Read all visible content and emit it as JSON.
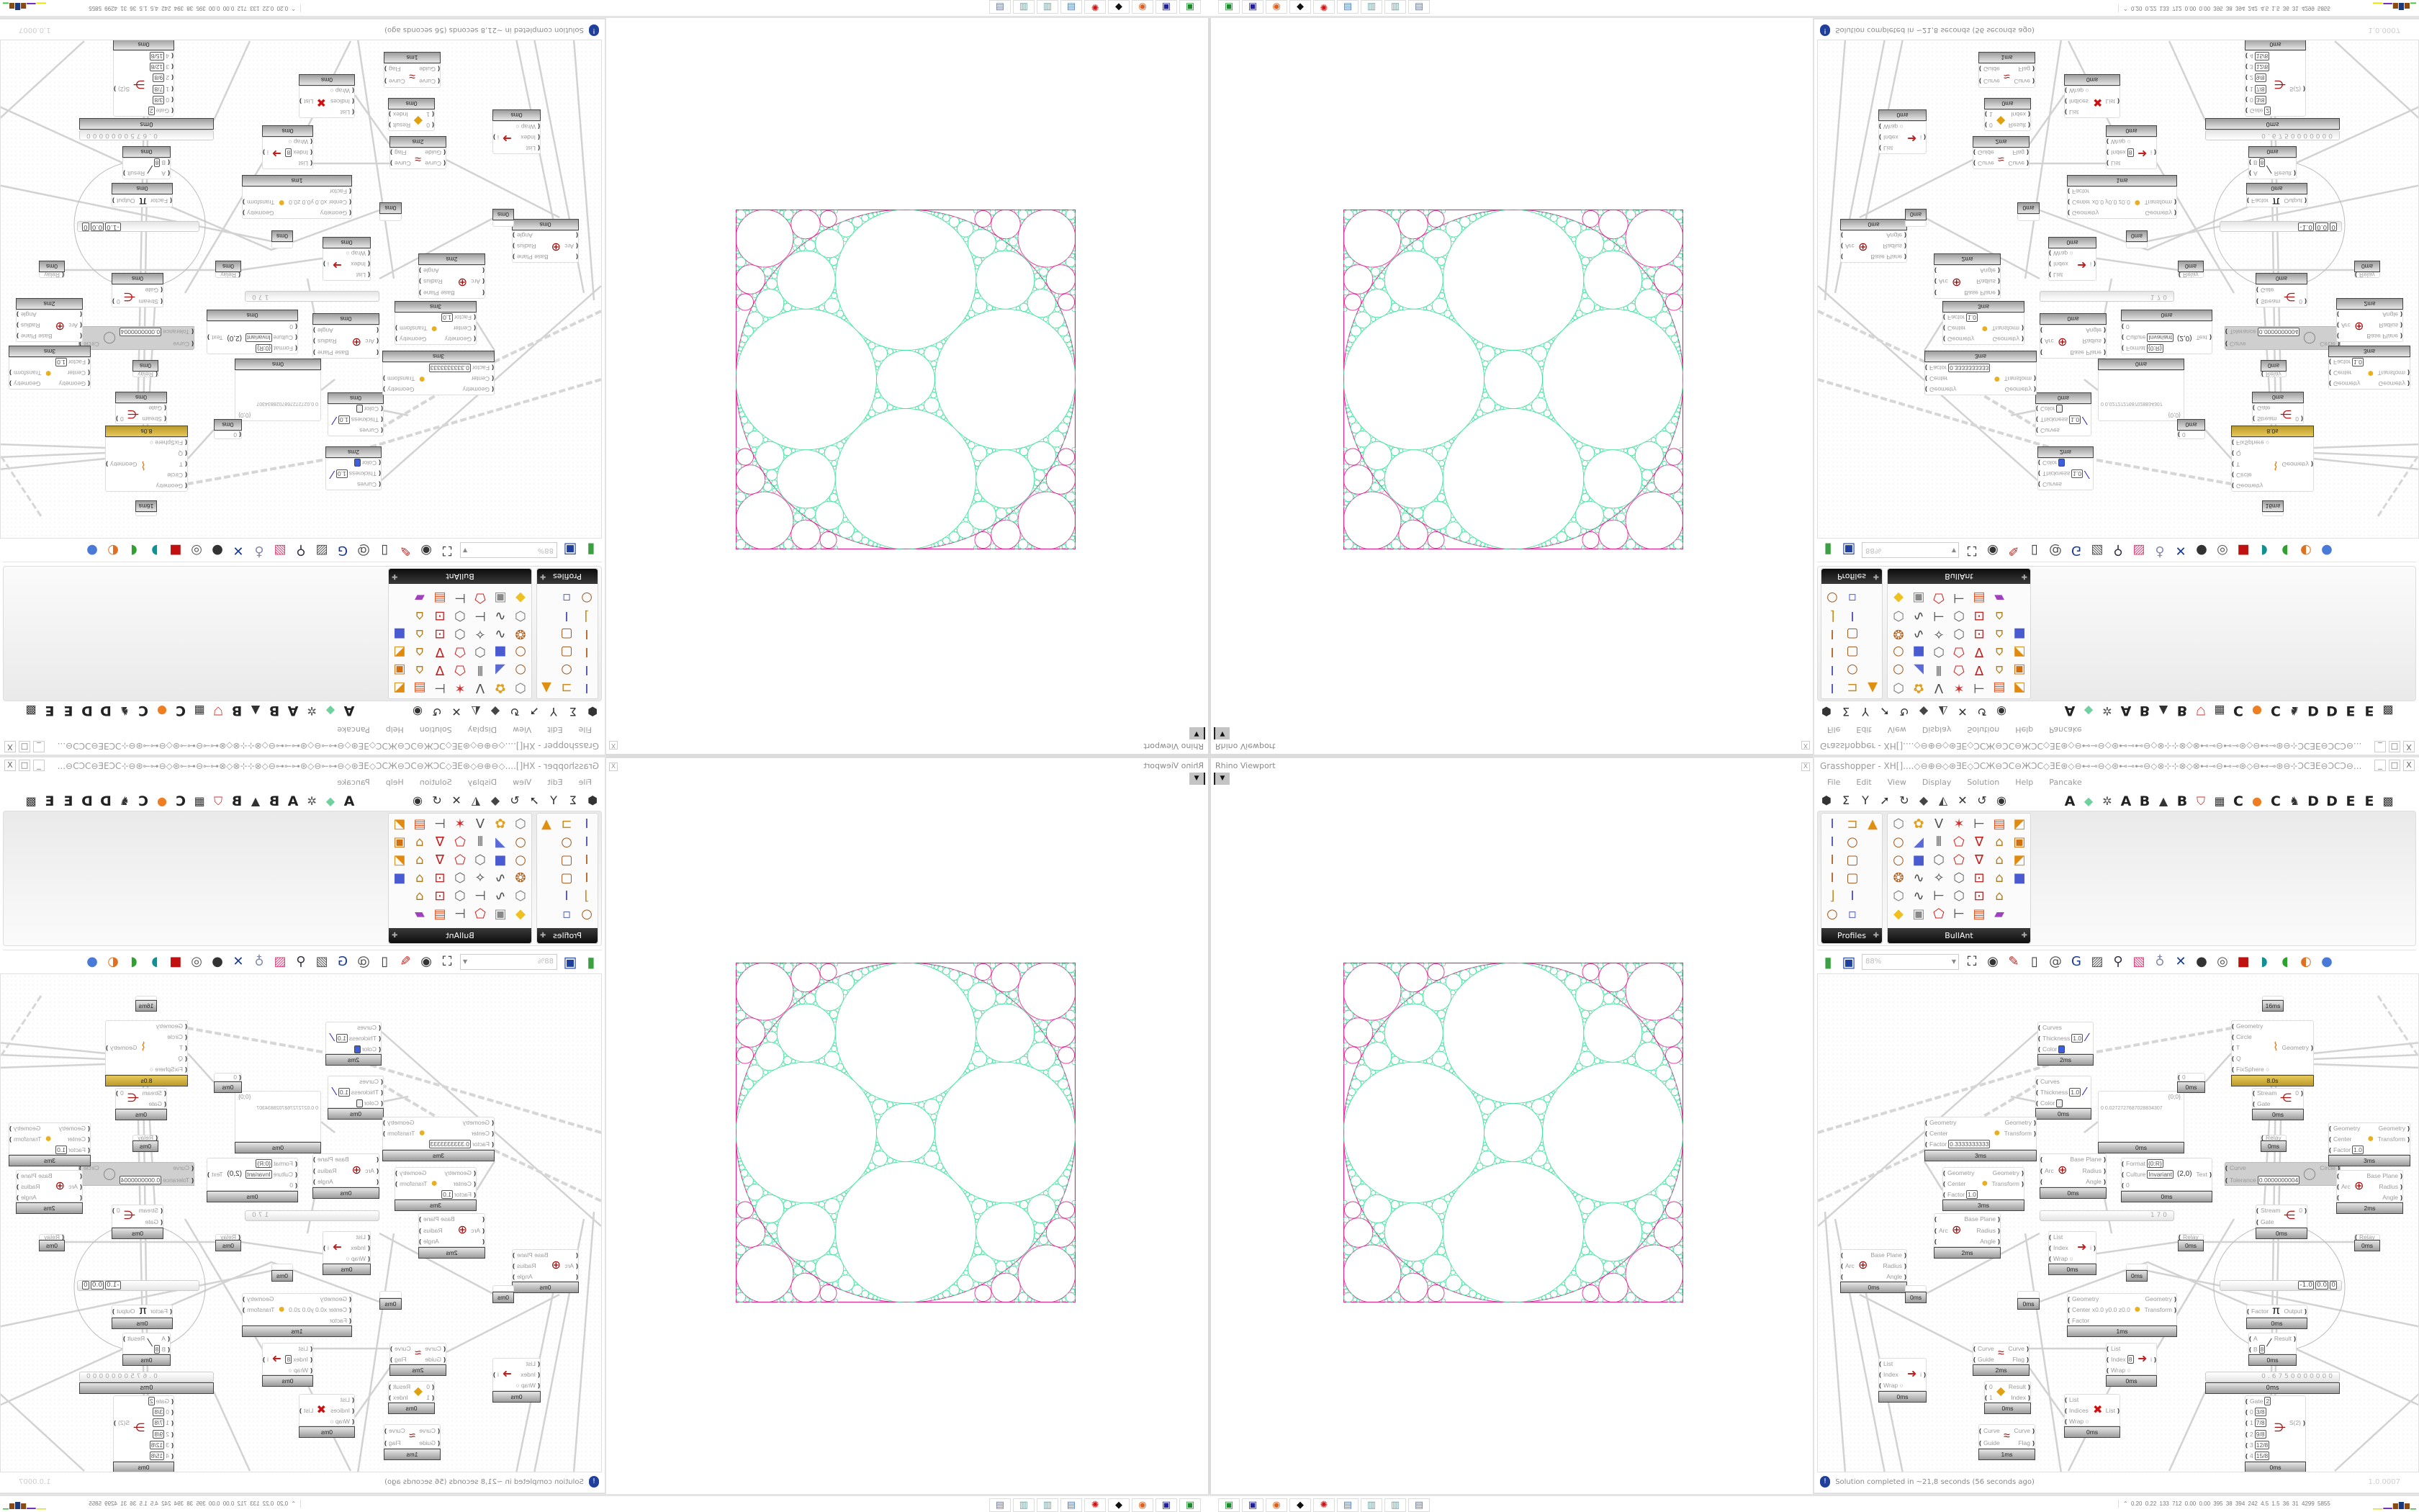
{
  "rhino": {
    "title": "Rhino Viewport",
    "dropdown_icon": "caret-down-icon",
    "close_label": "X"
  },
  "packing_colors": {
    "inner_circles": "#3fe39c",
    "boundary": "#e0208f"
  },
  "grasshopper": {
    "title": "Grasshopper - XH[]....◇⊖⊕⊖◇⊛ƎE◇ƆCЖ⊖ƆC⊖ЖƆC◇ƎE⊛◇⊖⊷⊸⊖◇⊛⊷⊸⊷⊖◇⊗⊹⊹⊗◇⊗⊷⊸⊖⊷⊸⊛◇⊖⊷⊸⊛⊖⊹ƆCƎE⊖ƆCƆ⊖...",
    "window_controls": [
      "_",
      "□",
      "X"
    ],
    "menu": [
      "File",
      "Edit",
      "View",
      "Display",
      "Solution",
      "Help",
      "Pancake"
    ],
    "tab_icons": [
      "hexagon-icon",
      "sigma-icon",
      "vector-icon",
      "arrow-icon",
      "rotate-icon",
      "surface-icon",
      "mesh-icon",
      "intersect-icon",
      "transform-icon",
      "eye-icon"
    ],
    "tabs": [
      {
        "label": "A"
      },
      {
        "icon": "leaf-icon"
      },
      {
        "icon": "gear-icon"
      },
      {
        "label": "A"
      },
      {
        "label": "B"
      },
      {
        "icon": "terrain-icon"
      },
      {
        "label": "B"
      },
      {
        "icon": "shield-icon"
      },
      {
        "icon": "grid-icon"
      },
      {
        "label": "C"
      },
      {
        "icon": "orange-dot-icon"
      },
      {
        "label": "C"
      },
      {
        "icon": "bird-icon"
      },
      {
        "label": "D"
      },
      {
        "label": "D"
      },
      {
        "label": "E"
      },
      {
        "label": "E"
      },
      {
        "icon": "dots-grid-icon"
      }
    ],
    "palette": [
      {
        "title": "Profiles",
        "cols": 3,
        "icons": [
          "i-section-icon",
          "c-channel-icon",
          "roof-fire-icon",
          "i-section-icon",
          "ring-icon",
          "",
          "i-beam-icon",
          "hollow-rect-icon",
          "",
          "i-beam-icon",
          "hollow-rect-icon",
          "",
          "angle-icon",
          "i-section-icon",
          "",
          "ring-icon",
          "small-squares-icon",
          ""
        ]
      },
      {
        "title": "BullAnt",
        "cols": 7,
        "icons": [
          "box-icon",
          "flower-icon",
          "v-truss-icon",
          "star-icon",
          "bracket-icon",
          "warp-icon",
          "graph-icon",
          "ring-icon",
          "plane-icon",
          "bars-icon",
          "quad-red-icon",
          "v-red-icon",
          "lock-icon",
          "frame-icon",
          "ring-icon",
          "cube-blue-icon",
          "hex-outline-icon",
          "quad-red-icon",
          "v-red-icon",
          "lock-icon",
          "graph-icon",
          "gear-ball-icon",
          "curve-icon",
          "star-outline-icon",
          "hex-outline-icon",
          "frame-red-icon",
          "lock-icon",
          "cube-blue-icon",
          "box-icon",
          "curve-icon",
          "bracket-icon",
          "hex-outline-icon",
          "frame-red-icon",
          "lock-icon",
          "",
          "gem-yellow-icon",
          "tablet-icon",
          "quad-red-icon",
          "bracket-icon",
          "warp-icon",
          "rainbow-icon",
          ""
        ]
      }
    ],
    "toolbar": {
      "zoom_value": "88%",
      "icons_left": [
        "new-document-icon",
        "save-icon"
      ],
      "icons_right": [
        "zoom-extents-icon",
        "eye-icon",
        "sketch-pen-icon",
        "battery-icon",
        "at-sign-icon",
        "gha-icon",
        "image-doc-icon",
        "search-s-icon",
        "package-icon",
        "bulb-icon",
        "wires-cross-icon",
        "dark-sphere-icon",
        "white-ring-icon",
        "red-box-icon",
        "teal-twist-icon",
        "green-cylinder-icon",
        "orange-sphere-icon",
        "blue-sphere-icon"
      ]
    },
    "nodes": [
      {
        "inputs": [
          {
            "l": "Curves"
          },
          {
            "l": "Thickness",
            "v": "1.0"
          },
          {
            "l": "Color",
            "sw": "#3a5fe0"
          }
        ],
        "outputs": [],
        "time": "2ms",
        "icon": "curve-preview-icon"
      },
      {
        "inputs": [
          {
            "l": "Curves"
          },
          {
            "l": "Thickness",
            "v": "1.0"
          },
          {
            "l": "Color",
            "sw": "#f0f0f0"
          }
        ],
        "outputs": [],
        "time": "0ms",
        "icon": "curve-preview-icon"
      },
      {
        "type": "panel",
        "header": "{0;0}",
        "lines": [
          "0  0.0272727687028834307"
        ],
        "time": "0ms"
      },
      {
        "inputs": [
          {
            "l": "Geometry"
          },
          {
            "l": "Circle"
          },
          {
            "l": "T"
          },
          {
            "l": "Q"
          },
          {
            "l": "FixSphere ○"
          }
        ],
        "outputs": [
          "",
          "",
          "Geometry",
          "",
          ""
        ],
        "time": "8.0s",
        "gold": true,
        "icon": "kangaroo-icon"
      },
      {
        "inputs": [
          {
            "l": "0"
          }
        ],
        "outputs": [],
        "time": "0ms"
      },
      {
        "inputs": [
          {
            "l": "Stream"
          },
          {
            "l": "Gate"
          }
        ],
        "outputs": [
          "0"
        ],
        "time": "0ms",
        "icon": "stream-gate-icon"
      },
      {
        "inputs": [
          {
            "l": "Relay"
          }
        ],
        "outputs": [],
        "time": "0ms"
      },
      {
        "inputs": [
          {
            "l": "Geometry"
          },
          {
            "l": "Center"
          },
          {
            "l": "Factor",
            "v": "0.3333333333"
          }
        ],
        "outputs": [
          "Geometry",
          "Transform"
        ],
        "time": "3ms",
        "icon": "scale-icon"
      },
      {
        "inputs": [
          {
            "l": "Geometry"
          },
          {
            "l": "Center"
          },
          {
            "l": "Factor",
            "v": "1.0"
          }
        ],
        "outputs": [
          "Geometry",
          "Transform"
        ],
        "time": "3ms",
        "icon": "scale-icon"
      },
      {
        "inputs": [
          {
            "l": ""
          },
          {
            "l": "Arc"
          },
          {
            "l": ""
          }
        ],
        "outputs": [
          "Base Plane",
          "Radius",
          "Angle"
        ],
        "time": "0ms",
        "icon": "deconstruct-arc-icon"
      },
      {
        "inputs": [
          {
            "l": "Format",
            "v": "{0:R}"
          },
          {
            "l": "Culture",
            "v": "Invariant"
          },
          {
            "l": "0"
          }
        ],
        "outputs": [
          "",
          "Text",
          ""
        ],
        "time": "0ms",
        "icon": "format-icon"
      },
      {
        "disabled": true,
        "inputs": [
          {
            "l": "Curve"
          },
          {
            "l": "Tolerance",
            "v": "0.0000000004"
          }
        ],
        "outputs": [
          "Circle"
        ],
        "icon": "fit-circle-icon"
      },
      {
        "inputs": [
          {
            "l": "Geometry"
          },
          {
            "l": "Center"
          },
          {
            "l": "Factor",
            "v": "1.0"
          }
        ],
        "outputs": [
          "Geometry",
          "Transform"
        ],
        "time": "3ms",
        "icon": "scale-icon"
      },
      {
        "inputs": [
          {
            "l": ""
          },
          {
            "l": "Arc"
          },
          {
            "l": ""
          }
        ],
        "outputs": [
          "Base Plane",
          "Radius",
          "Angle"
        ],
        "time": "2ms",
        "icon": "deconstruct-arc-icon"
      },
      {
        "type": "slider",
        "value": "170"
      },
      {
        "inputs": [],
        "outputs": [],
        "time": "16ms"
      },
      {
        "inputs": [
          {
            "l": ""
          },
          {
            "l": "Arc"
          },
          {
            "l": ""
          }
        ],
        "outputs": [
          "Base Plane",
          "Radius",
          "Angle"
        ],
        "time": "0ms",
        "icon": "deconstruct-arc-icon"
      },
      {
        "inputs": [
          {
            "l": ""
          },
          {
            "l": "Arc"
          },
          {
            "l": ""
          }
        ],
        "outputs": [
          "Base Plane",
          "Radius",
          "Angle"
        ],
        "time": "2ms",
        "icon": "deconstruct-arc-icon"
      },
      {
        "inputs": [],
        "outputs": [],
        "time": "0ms"
      },
      {
        "inputs": [],
        "outputs": [],
        "time": "0ms"
      },
      {
        "inputs": [],
        "outputs": [],
        "time": "0ms"
      },
      {
        "inputs": [
          {
            "l": "List"
          },
          {
            "l": "Index"
          },
          {
            "l": "Wrap ○"
          }
        ],
        "outputs": [
          "",
          "i",
          ""
        ],
        "time": "0ms",
        "icon": "list-item-icon"
      },
      {
        "inputs": [
          {
            "l": "Relay"
          }
        ],
        "outputs": [],
        "time": "0ms"
      },
      {
        "inputs": [
          {
            "l": "Relay"
          }
        ],
        "outputs": [],
        "time": "0ms"
      },
      {
        "inputs": [
          {
            "l": "Stream"
          },
          {
            "l": "Gate"
          }
        ],
        "outputs": [
          "0"
        ],
        "time": "0ms",
        "icon": "stream-gate-icon"
      },
      {
        "type": "mdslider",
        "values": [
          "-1.0",
          "0.0",
          "0"
        ]
      },
      {
        "inputs": [
          {
            "l": "Geometry"
          },
          {
            "l": "Center x0.0 y0.0 z0.0"
          },
          {
            "l": "Factor"
          }
        ],
        "outputs": [
          "Geometry",
          "Transform"
        ],
        "time": "1ms",
        "icon": "scale-icon"
      },
      {
        "inputs": [
          {
            "l": "Factor"
          }
        ],
        "outputs": [
          "Output"
        ],
        "time": "0ms",
        "icon": "pi-icon"
      },
      {
        "inputs": [
          {
            "l": "A"
          },
          {
            "l": "B",
            "v": "8"
          }
        ],
        "outputs": [
          "Result"
        ],
        "time": "0ms",
        "icon": "division-icon"
      },
      {
        "type": "slider",
        "value": "0.6750000000",
        "time": "0ms"
      },
      {
        "inputs": [
          {
            "l": "Curve"
          },
          {
            "l": "Guide"
          }
        ],
        "outputs": [
          "Curve",
          "Flag"
        ],
        "time": "2ms",
        "icon": "flip-curve-icon"
      },
      {
        "inputs": [
          {
            "l": "List"
          },
          {
            "l": "Index"
          },
          {
            "l": "Wrap ○"
          }
        ],
        "outputs": [
          "",
          "i",
          ""
        ],
        "time": "0ms",
        "icon": "list-item-icon"
      },
      {
        "inputs": [
          {
            "l": "List"
          },
          {
            "l": "Index",
            "v": "8"
          },
          {
            "l": "Wrap ○"
          }
        ],
        "outputs": [
          "",
          "i",
          ""
        ],
        "time": "0ms",
        "icon": "list-item-icon"
      },
      {
        "inputs": [
          {
            "l": "0"
          },
          {
            "l": "1"
          }
        ],
        "outputs": [
          "Result",
          "Index"
        ],
        "time": "0ms",
        "icon": "pick-icon"
      },
      {
        "inputs": [
          {
            "l": "List"
          },
          {
            "l": "Indices"
          },
          {
            "l": "Wrap ○"
          }
        ],
        "outputs": [
          "",
          "List",
          ""
        ],
        "time": "0ms",
        "icon": "cull-index-icon"
      },
      {
        "inputs": [
          {
            "l": "Gate",
            "v": "2"
          },
          {
            "l": "0",
            "v": "3/8"
          },
          {
            "l": "1",
            "v": "7/8"
          },
          {
            "l": "2",
            "v": "9/8"
          },
          {
            "l": "3",
            "v": "12/8"
          },
          {
            "l": "4",
            "v": "15/8"
          }
        ],
        "outputs": [
          "",
          "",
          "S(2)",
          "",
          "",
          ""
        ],
        "time": "0ms",
        "icon": "stream-filter-icon"
      },
      {
        "inputs": [
          {
            "l": "Curve"
          },
          {
            "l": "Guide"
          }
        ],
        "outputs": [
          "Curve",
          "Flag"
        ],
        "time": "1ms",
        "icon": "flip-curve-icon"
      }
    ],
    "status": {
      "message": "Solution completed in ~21,8 seconds (56 seconds ago)",
      "version": "1.0.0007",
      "icon": "info-icon"
    }
  },
  "taskbar": {
    "icons": [
      "green-floppy-icon",
      "floppy-64-icon",
      "firefox-icon",
      "inkscape-icon",
      "red-app-icon",
      "calculator-icon",
      "notepad-icon",
      "notepad-icon",
      "document-icon"
    ],
    "stats": "0.20 0.22 133 712 0.00 0.00 395 38 394 242 4.5 1.5 36 31 4299 5855",
    "expand_icon": "chevron-up-icon"
  }
}
